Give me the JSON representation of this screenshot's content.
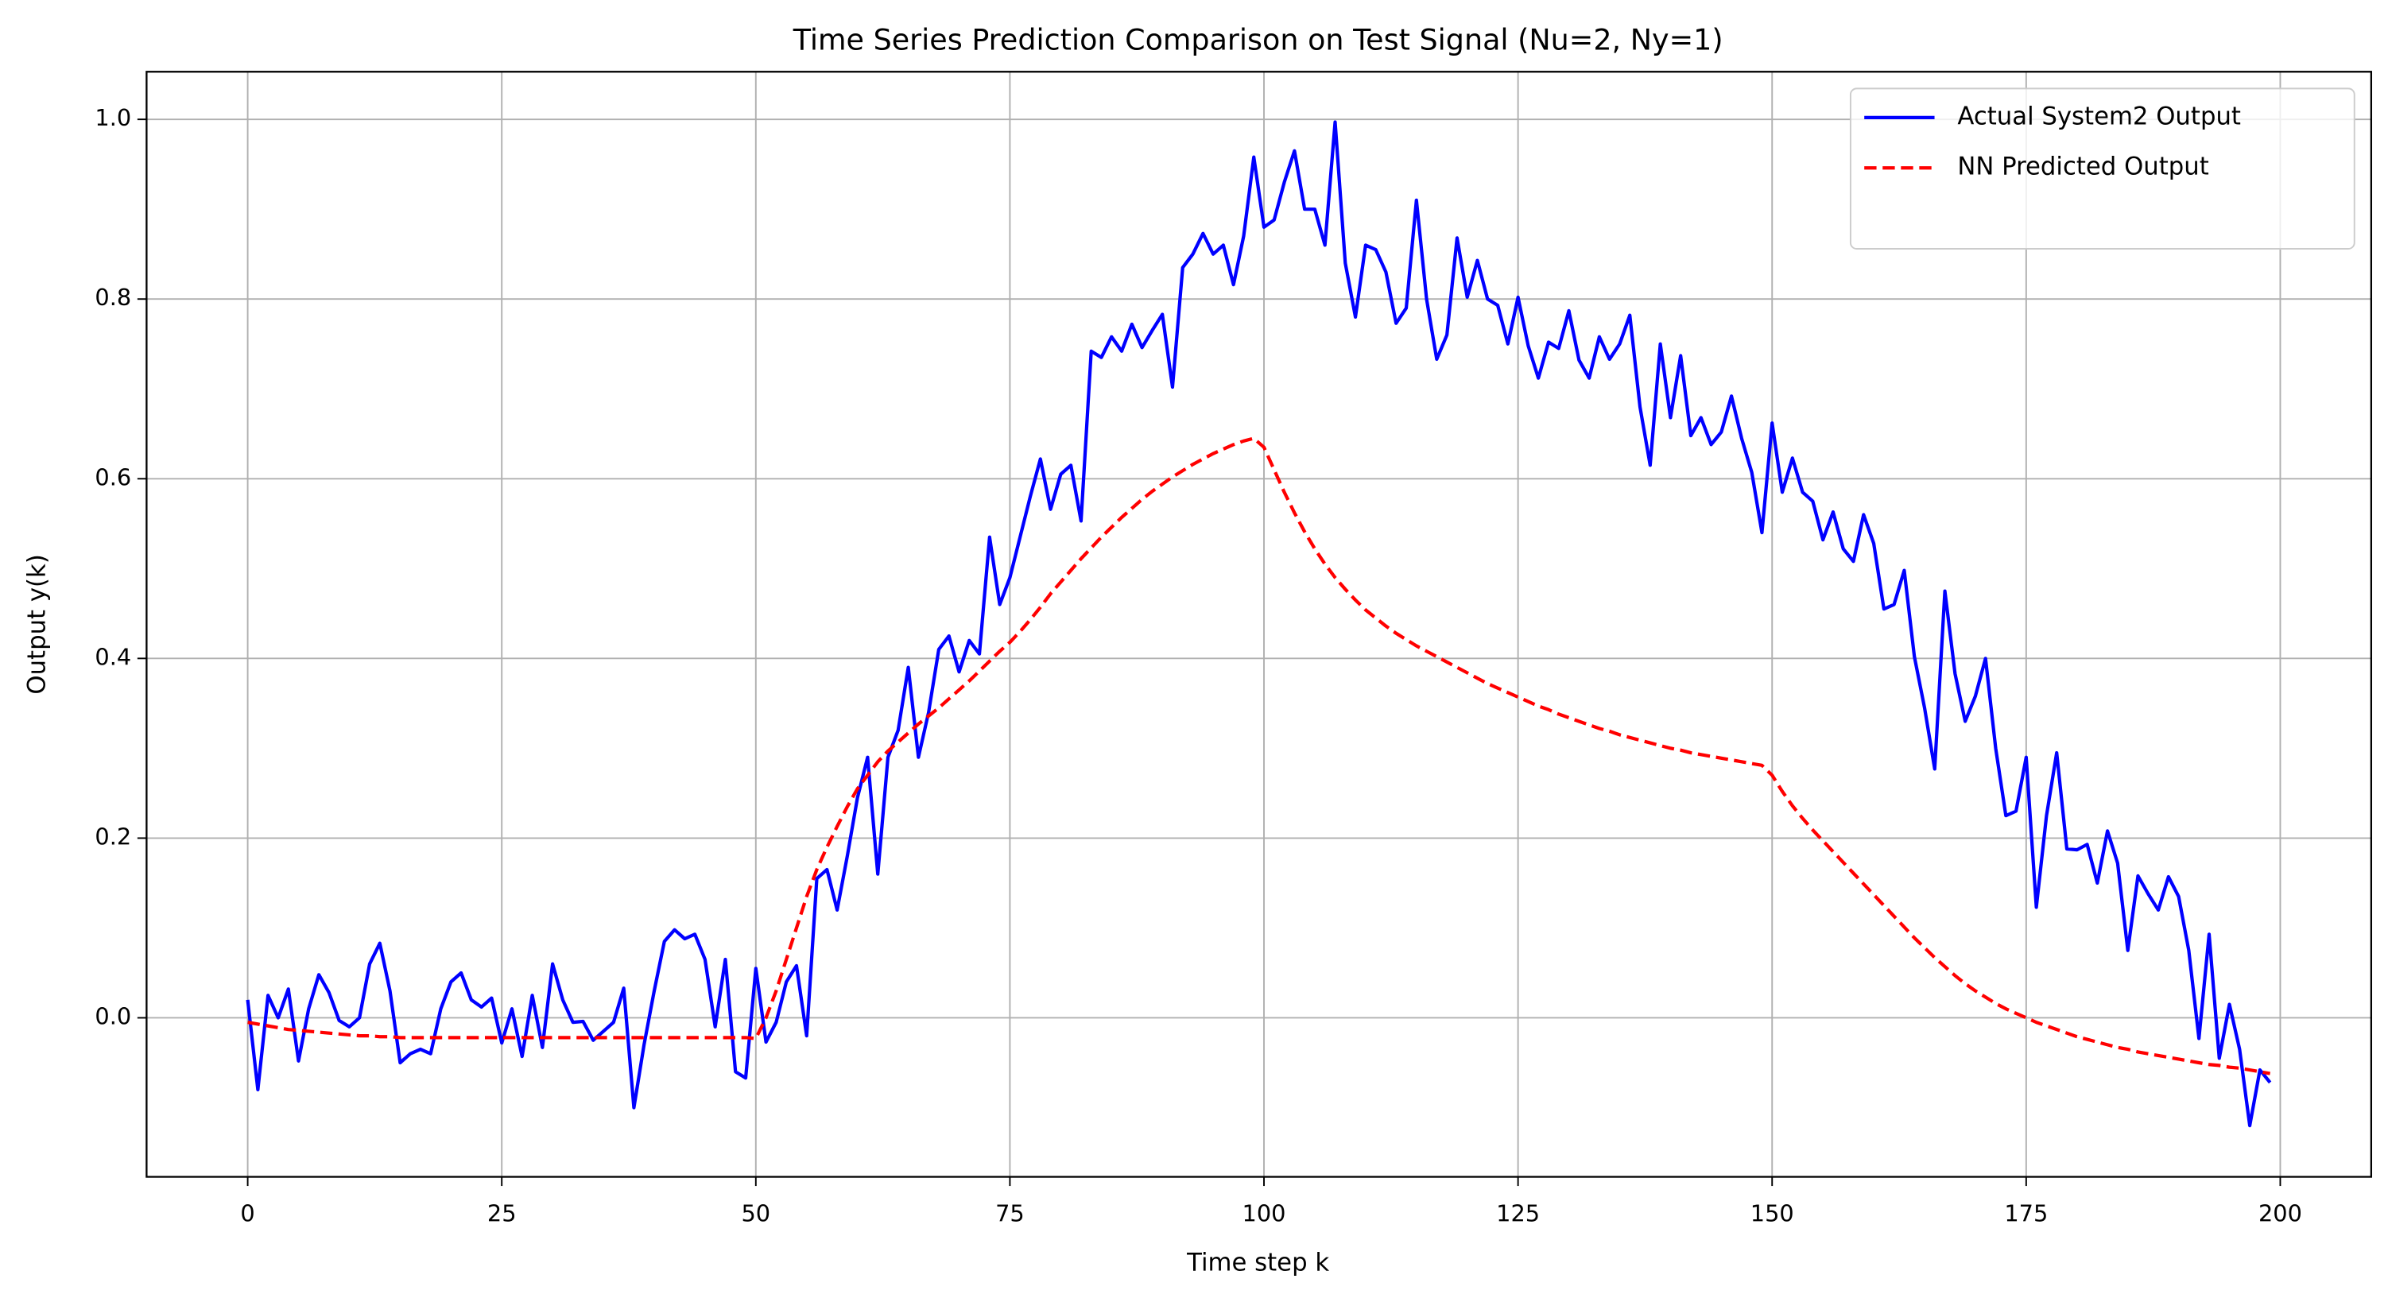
{
  "chart_data": {
    "type": "line",
    "title": "Time Series Prediction Comparison on Test Signal (Nu=2, Ny=1)",
    "xlabel": "Time step k",
    "ylabel": "Output y(k)",
    "x": [
      0,
      1,
      2,
      3,
      4,
      5,
      6,
      7,
      8,
      9,
      10,
      11,
      12,
      13,
      14,
      15,
      16,
      17,
      18,
      19,
      20,
      21,
      22,
      23,
      24,
      25,
      26,
      27,
      28,
      29,
      30,
      31,
      32,
      33,
      34,
      35,
      36,
      37,
      38,
      39,
      40,
      41,
      42,
      43,
      44,
      45,
      46,
      47,
      48,
      49,
      50,
      51,
      52,
      53,
      54,
      55,
      56,
      57,
      58,
      59,
      60,
      61,
      62,
      63,
      64,
      65,
      66,
      67,
      68,
      69,
      70,
      71,
      72,
      73,
      74,
      75,
      76,
      77,
      78,
      79,
      80,
      81,
      82,
      83,
      84,
      85,
      86,
      87,
      88,
      89,
      90,
      91,
      92,
      93,
      94,
      95,
      96,
      97,
      98,
      99,
      100,
      101,
      102,
      103,
      104,
      105,
      106,
      107,
      108,
      109,
      110,
      111,
      112,
      113,
      114,
      115,
      116,
      117,
      118,
      119,
      120,
      121,
      122,
      123,
      124,
      125,
      126,
      127,
      128,
      129,
      130,
      131,
      132,
      133,
      134,
      135,
      136,
      137,
      138,
      139,
      140,
      141,
      142,
      143,
      144,
      145,
      146,
      147,
      148,
      149,
      150,
      151,
      152,
      153,
      154,
      155,
      156,
      157,
      158,
      159,
      160,
      161,
      162,
      163,
      164,
      165,
      166,
      167,
      168,
      169,
      170,
      171,
      172,
      173,
      174,
      175,
      176,
      177,
      178,
      179,
      180,
      181,
      182,
      183,
      184,
      185,
      186,
      187,
      188,
      189,
      190,
      191,
      192,
      193,
      194,
      195,
      196,
      197,
      198,
      199
    ],
    "series": [
      {
        "name": "Actual System2 Output",
        "color": "#0000ff",
        "linestyle": "solid",
        "values": [
          0.02,
          -0.08,
          0.025,
          0.0,
          0.032,
          -0.048,
          0.01,
          0.048,
          0.028,
          -0.003,
          -0.01,
          0.0,
          0.06,
          0.083,
          0.03,
          -0.05,
          -0.04,
          -0.035,
          -0.04,
          0.01,
          0.04,
          0.05,
          0.02,
          0.012,
          0.022,
          -0.028,
          0.01,
          -0.043,
          0.025,
          -0.033,
          0.06,
          0.02,
          -0.005,
          -0.004,
          -0.025,
          -0.015,
          -0.005,
          0.033,
          -0.1,
          -0.03,
          0.03,
          0.085,
          0.098,
          0.088,
          0.093,
          0.065,
          -0.01,
          0.065,
          -0.06,
          -0.067,
          0.055,
          -0.027,
          -0.005,
          0.04,
          0.058,
          -0.02,
          0.155,
          0.165,
          0.12,
          0.18,
          0.245,
          0.29,
          0.16,
          0.29,
          0.32,
          0.39,
          0.29,
          0.34,
          0.41,
          0.425,
          0.385,
          0.42,
          0.405,
          0.535,
          0.46,
          0.49,
          0.535,
          0.58,
          0.622,
          0.566,
          0.605,
          0.615,
          0.553,
          0.742,
          0.735,
          0.758,
          0.742,
          0.772,
          0.746,
          0.765,
          0.783,
          0.702,
          0.835,
          0.85,
          0.873,
          0.85,
          0.86,
          0.816,
          0.87,
          0.958,
          0.88,
          0.888,
          0.93,
          0.965,
          0.9,
          0.9,
          0.86,
          0.997,
          0.84,
          0.78,
          0.86,
          0.855,
          0.83,
          0.773,
          0.79,
          0.91,
          0.8,
          0.733,
          0.76,
          0.868,
          0.802,
          0.843,
          0.8,
          0.793,
          0.75,
          0.802,
          0.748,
          0.712,
          0.752,
          0.745,
          0.787,
          0.732,
          0.712,
          0.758,
          0.733,
          0.75,
          0.782,
          0.68,
          0.615,
          0.75,
          0.668,
          0.737,
          0.648,
          0.668,
          0.638,
          0.652,
          0.692,
          0.645,
          0.607,
          0.54,
          0.662,
          0.585,
          0.623,
          0.585,
          0.575,
          0.532,
          0.563,
          0.522,
          0.508,
          0.56,
          0.528,
          0.455,
          0.46,
          0.498,
          0.402,
          0.345,
          0.277,
          0.475,
          0.383,
          0.33,
          0.358,
          0.4,
          0.3,
          0.225,
          0.23,
          0.29,
          0.123,
          0.225,
          0.295,
          0.188,
          0.187,
          0.193,
          0.15,
          0.208,
          0.172,
          0.075,
          0.158,
          0.138,
          0.12,
          0.157,
          0.135,
          0.075,
          -0.023,
          0.093,
          -0.045,
          0.015,
          -0.035,
          -0.12,
          -0.058,
          -0.072
        ]
      },
      {
        "name": "NN Predicted Output",
        "color": "#ff0000",
        "linestyle": "dashed",
        "values": [
          -0.005,
          -0.007,
          -0.009,
          -0.011,
          -0.013,
          -0.014,
          -0.015,
          -0.016,
          -0.017,
          -0.018,
          -0.019,
          -0.02,
          -0.02,
          -0.021,
          -0.021,
          -0.022,
          -0.022,
          -0.022,
          -0.022,
          -0.022,
          -0.022,
          -0.022,
          -0.022,
          -0.022,
          -0.022,
          -0.022,
          -0.022,
          -0.022,
          -0.022,
          -0.022,
          -0.022,
          -0.022,
          -0.022,
          -0.022,
          -0.022,
          -0.022,
          -0.022,
          -0.022,
          -0.022,
          -0.022,
          -0.022,
          -0.022,
          -0.022,
          -0.022,
          -0.022,
          -0.022,
          -0.022,
          -0.022,
          -0.022,
          -0.022,
          -0.023,
          0.0,
          0.03,
          0.065,
          0.1,
          0.135,
          0.165,
          0.19,
          0.213,
          0.235,
          0.255,
          0.27,
          0.285,
          0.297,
          0.307,
          0.317,
          0.327,
          0.336,
          0.345,
          0.355,
          0.365,
          0.375,
          0.386,
          0.397,
          0.408,
          0.418,
          0.43,
          0.443,
          0.457,
          0.472,
          0.485,
          0.498,
          0.511,
          0.523,
          0.535,
          0.546,
          0.557,
          0.567,
          0.577,
          0.586,
          0.594,
          0.602,
          0.609,
          0.616,
          0.622,
          0.628,
          0.633,
          0.638,
          0.642,
          0.645,
          0.635,
          0.61,
          0.585,
          0.562,
          0.541,
          0.522,
          0.505,
          0.49,
          0.477,
          0.465,
          0.454,
          0.445,
          0.436,
          0.428,
          0.421,
          0.414,
          0.408,
          0.402,
          0.396,
          0.39,
          0.384,
          0.378,
          0.372,
          0.367,
          0.362,
          0.357,
          0.352,
          0.347,
          0.343,
          0.338,
          0.334,
          0.33,
          0.326,
          0.322,
          0.319,
          0.315,
          0.312,
          0.309,
          0.306,
          0.303,
          0.3,
          0.298,
          0.295,
          0.293,
          0.291,
          0.289,
          0.287,
          0.285,
          0.283,
          0.281,
          0.27,
          0.252,
          0.236,
          0.222,
          0.209,
          0.197,
          0.185,
          0.173,
          0.161,
          0.149,
          0.137,
          0.125,
          0.113,
          0.101,
          0.089,
          0.078,
          0.067,
          0.057,
          0.047,
          0.038,
          0.03,
          0.023,
          0.016,
          0.01,
          0.005,
          0.0,
          -0.005,
          -0.009,
          -0.013,
          -0.017,
          -0.021,
          -0.024,
          -0.027,
          -0.03,
          -0.033,
          -0.035,
          -0.038,
          -0.04,
          -0.042,
          -0.044,
          -0.046,
          -0.048,
          -0.05,
          -0.052,
          -0.053,
          -0.055,
          -0.056,
          -0.058,
          -0.06,
          -0.062
        ]
      }
    ],
    "xlim": [
      -9.95,
      208.95
    ],
    "ylim": [
      -0.177,
      1.053
    ],
    "xticks": [
      0,
      25,
      50,
      75,
      100,
      125,
      150,
      175,
      200
    ],
    "yticks": [
      {
        "value": 0,
        "label": "0.0"
      },
      0.2,
      0.4,
      0.6,
      0.8,
      {
        "value": 1,
        "label": "1.0"
      }
    ],
    "grid": true,
    "legend": "upper right"
  }
}
